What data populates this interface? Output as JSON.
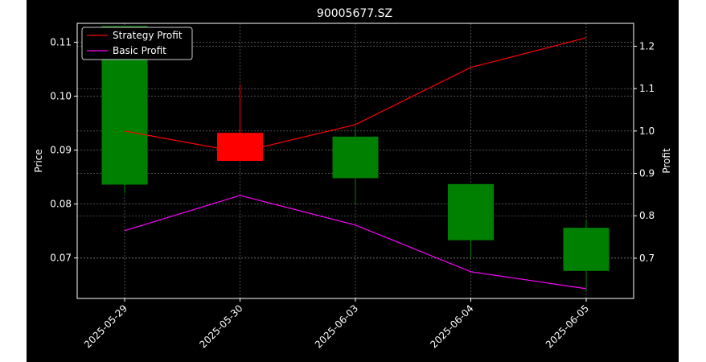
{
  "chart_data": {
    "type": "candlestick",
    "title": "90005677.SZ",
    "xlabel": "",
    "ylabel": "Price",
    "y2label": "Profit",
    "categories": [
      "2025-05-29",
      "2025-05-30",
      "2025-06-03",
      "2025-06-04",
      "2025-06-05"
    ],
    "ylim": [
      0.0625,
      0.1135
    ],
    "y2lim": [
      0.605,
      1.254
    ],
    "yticks": [
      "0.07",
      "0.08",
      "0.09",
      "0.10",
      "0.11"
    ],
    "y2ticks": [
      "0.7",
      "0.8",
      "0.9",
      "1.0",
      "1.1",
      "1.2"
    ],
    "candles": [
      {
        "open": 0.0836,
        "close": 0.113,
        "high": 0.113,
        "low": 0.082,
        "direction": "up"
      },
      {
        "open": 0.0932,
        "close": 0.088,
        "high": 0.1022,
        "low": 0.088,
        "direction": "down"
      },
      {
        "open": 0.0848,
        "close": 0.0925,
        "high": 0.094,
        "low": 0.08,
        "direction": "up"
      },
      {
        "open": 0.0733,
        "close": 0.0837,
        "high": 0.0837,
        "low": 0.07,
        "direction": "up"
      },
      {
        "open": 0.0676,
        "close": 0.0756,
        "high": 0.0772,
        "low": 0.064,
        "direction": "up"
      }
    ],
    "series": [
      {
        "name": "Strategy Profit",
        "axis": "right",
        "color": "#ff0000",
        "values": [
          1.0,
          0.95,
          1.015,
          1.15,
          1.22
        ]
      },
      {
        "name": "Basic Profit",
        "axis": "right",
        "color": "#ff00ff",
        "values": [
          0.765,
          0.848,
          0.778,
          0.668,
          0.628
        ]
      }
    ],
    "legend_position": "top-left",
    "grid": true,
    "colors": {
      "up": "#008000",
      "down": "#ff0000",
      "background": "#000000",
      "axes": "#ffffff",
      "grid": "#808080"
    }
  }
}
